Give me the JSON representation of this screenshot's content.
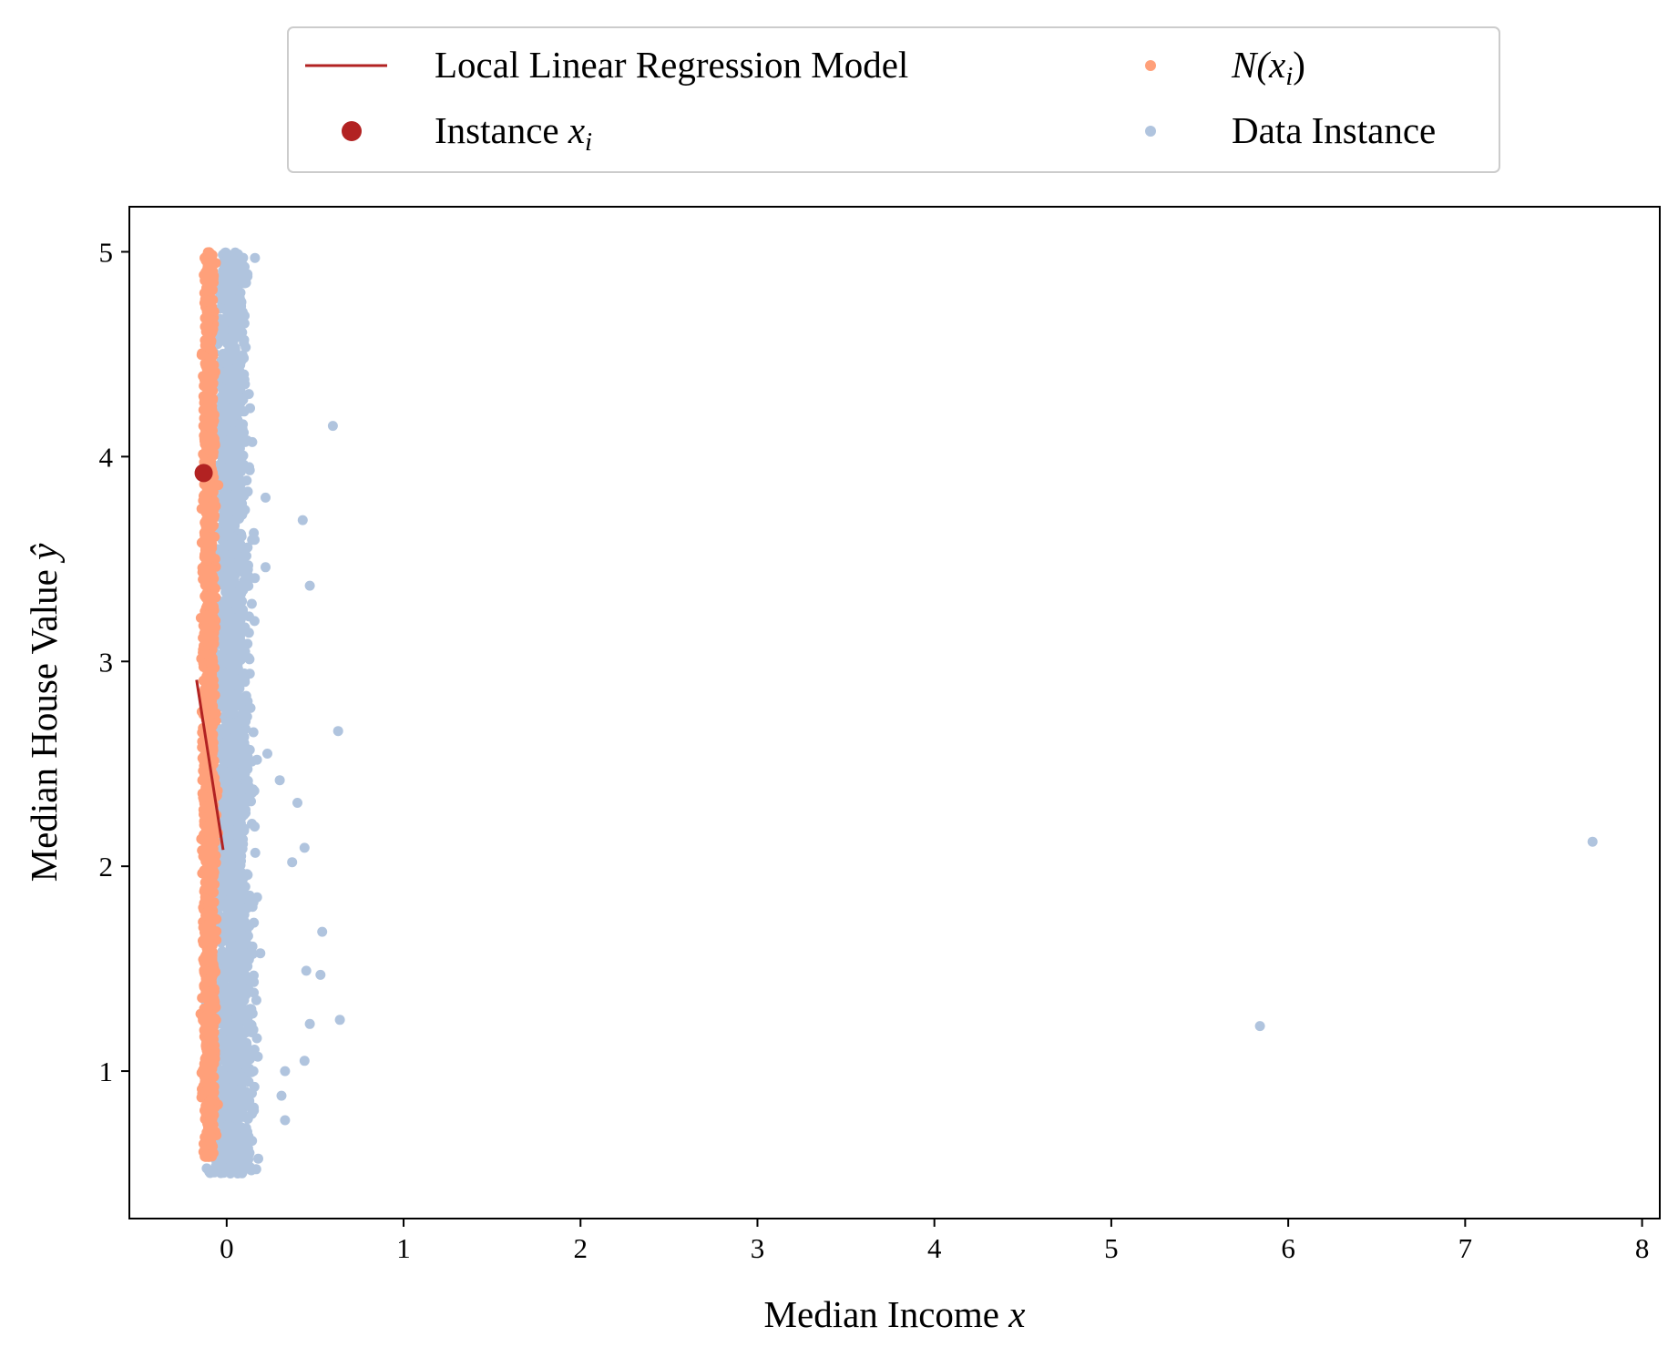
{
  "chart_data": {
    "type": "scatter",
    "xlabel": "Median Income",
    "xlabel_var": "x",
    "ylabel": "Median House Value",
    "ylabel_var": "ŷ",
    "xlim": [
      -0.55,
      8.1
    ],
    "ylim": [
      0.28,
      5.22
    ],
    "xticks": [
      0,
      1,
      2,
      3,
      4,
      5,
      6,
      7,
      8
    ],
    "yticks": [
      1,
      2,
      3,
      4,
      5
    ],
    "grid": false,
    "legend": {
      "placement": "top-center-outside",
      "columns": 2,
      "entries": [
        {
          "key": "model",
          "label": "Local Linear Regression Model",
          "marker": "line",
          "color": "#b22222"
        },
        {
          "key": "neighborhood",
          "label_prefix": "N(",
          "label_var": "x",
          "label_sub": "i",
          "label_suffix": ")",
          "marker": "dot",
          "color": "#ffa07a"
        },
        {
          "key": "instance",
          "label_prefix": "Instance ",
          "label_var": "x",
          "label_sub": "i",
          "marker": "big-dot",
          "color": "#b22222"
        },
        {
          "key": "data",
          "label": "Data Instance",
          "marker": "dot",
          "color": "#b0c4de"
        }
      ]
    },
    "series": [
      {
        "key": "data",
        "color": "#b0c4de",
        "cluster": {
          "x_center": 0.03,
          "x_spread": 0.13,
          "y_range": [
            0.5,
            5.0
          ],
          "count": 2600
        },
        "outliers": [
          {
            "x": 0.6,
            "y": 4.15
          },
          {
            "x": 0.43,
            "y": 3.69
          },
          {
            "x": 0.47,
            "y": 3.37
          },
          {
            "x": 0.63,
            "y": 2.66
          },
          {
            "x": 0.3,
            "y": 2.42
          },
          {
            "x": 0.4,
            "y": 2.31
          },
          {
            "x": 0.44,
            "y": 2.09
          },
          {
            "x": 0.37,
            "y": 2.02
          },
          {
            "x": 0.54,
            "y": 1.68
          },
          {
            "x": 0.45,
            "y": 1.49
          },
          {
            "x": 0.53,
            "y": 1.47
          },
          {
            "x": 0.64,
            "y": 1.25
          },
          {
            "x": 0.47,
            "y": 1.23
          },
          {
            "x": 0.44,
            "y": 1.05
          },
          {
            "x": 0.33,
            "y": 0.76
          },
          {
            "x": 0.16,
            "y": 4.97
          },
          {
            "x": 0.22,
            "y": 3.8
          },
          {
            "x": 0.22,
            "y": 3.46
          },
          {
            "x": 0.23,
            "y": 2.55
          },
          {
            "x": 0.33,
            "y": 1.0
          },
          {
            "x": 0.31,
            "y": 0.88
          },
          {
            "x": 5.84,
            "y": 1.22
          },
          {
            "x": 7.72,
            "y": 2.12
          }
        ]
      },
      {
        "key": "neighborhood",
        "color": "#ffa07a",
        "cluster": {
          "x_center": -0.1,
          "x_spread": 0.06,
          "y_range": [
            0.58,
            5.0
          ],
          "count": 1800
        }
      },
      {
        "key": "instance",
        "color": "#b22222",
        "points": [
          {
            "x": -0.13,
            "y": 3.92
          }
        ]
      },
      {
        "key": "model",
        "color": "#b22222",
        "line": [
          {
            "x": -0.17,
            "y": 2.91
          },
          {
            "x": -0.02,
            "y": 2.08
          }
        ]
      }
    ]
  }
}
